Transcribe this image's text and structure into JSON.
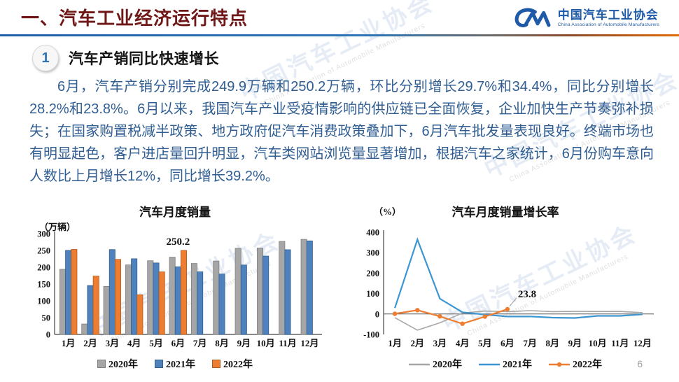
{
  "header": {
    "title": "一、汽车工业经济运行特点"
  },
  "logo": {
    "name": "中国汽车工业协会",
    "subtitle": "China Association of Automobile Manufacturers"
  },
  "section": {
    "number": "1",
    "heading": "汽车产销同比快速增长"
  },
  "paragraph": "6月，汽车产销分别完成249.9万辆和250.2万辆，环比分别增长29.7%和34.4%，同比分别增长28.2%和23.8%。6月以来，我国汽车产业受疫情影响的供应链已全面恢复，企业加快生产节奏弥补损失；在国家购置税减半政策、地方政府促汽车消费政策叠加下，6月汽车批发量表现良好。终端市场也有明显起色，客户进店量回升明显，汽车类网站浏览量显著增加，根据汽车之家统计，6月份购车意向人数比上月增长12%，同比增长39.2%。",
  "chart_data": [
    {
      "type": "bar",
      "title": "汽车月度销量",
      "unit": "（万辆）",
      "ylabel": "万辆",
      "ylim": [
        0,
        300
      ],
      "yticks": [
        0,
        50,
        100,
        150,
        200,
        250,
        300
      ],
      "grid": false,
      "legend_position": "bottom",
      "categories": [
        "1月",
        "2月",
        "3月",
        "4月",
        "5月",
        "6月",
        "7月",
        "8月",
        "9月",
        "10月",
        "11月",
        "12月"
      ],
      "series": [
        {
          "name": "2020年",
          "color": "#A6A6A6",
          "border": "#7f7f7f",
          "values": [
            194.1,
            31.0,
            143.0,
            207.0,
            219.4,
            230.0,
            211.2,
            218.6,
            256.5,
            257.3,
            277.0,
            283.1
          ]
        },
        {
          "name": "2021年",
          "color": "#4F81BD",
          "border": "#2f5e8e",
          "values": [
            250.3,
            145.5,
            252.6,
            225.2,
            212.8,
            201.5,
            186.4,
            179.9,
            206.7,
            233.3,
            252.2,
            278.6
          ]
        },
        {
          "name": "2022年",
          "color": "#ED7D31",
          "border": "#b05a1d",
          "values": [
            253.1,
            173.7,
            223.4,
            118.1,
            186.2,
            250.2,
            null,
            null,
            null,
            null,
            null,
            null
          ]
        }
      ],
      "annotation": {
        "series": 2,
        "index": 5,
        "text": "250.2"
      }
    },
    {
      "type": "line",
      "title": "汽车月度销量增长率",
      "unit": "（%）",
      "ylabel": "%",
      "ylim": [
        -100,
        400
      ],
      "yticks": [
        -100,
        0,
        100,
        200,
        300,
        400
      ],
      "grid": false,
      "legend_position": "bottom",
      "categories": [
        "1月",
        "2月",
        "3月",
        "4月",
        "5月",
        "6月",
        "7月",
        "8月",
        "9月",
        "10月",
        "11月",
        "12月"
      ],
      "series": [
        {
          "name": "2020年",
          "color": "#A6A6A6",
          "width": 1.6,
          "marker": false,
          "values": [
            -18.0,
            -79.1,
            -43.3,
            4.4,
            14.5,
            11.6,
            16.4,
            11.6,
            12.8,
            12.5,
            12.6,
            6.4
          ]
        },
        {
          "name": "2021年",
          "color": "#3c96d2",
          "width": 2.2,
          "marker": false,
          "values": [
            29.5,
            364.8,
            74.9,
            8.6,
            -3.1,
            -12.4,
            -11.9,
            -17.8,
            -19.6,
            -9.4,
            -9.1,
            -1.6
          ]
        },
        {
          "name": "2022年",
          "color": "#ED7D31",
          "width": 2.2,
          "marker": true,
          "values": [
            0.9,
            18.7,
            -11.7,
            -47.6,
            -12.6,
            23.8,
            null,
            null,
            null,
            null,
            null,
            null
          ]
        }
      ],
      "annotation": {
        "series": 2,
        "index": 5,
        "text": "23.8"
      }
    }
  ],
  "watermark": {
    "text": "中国汽车工业协会",
    "subtext": "China Association of Automobile Manufacturers"
  },
  "page_number": "6"
}
